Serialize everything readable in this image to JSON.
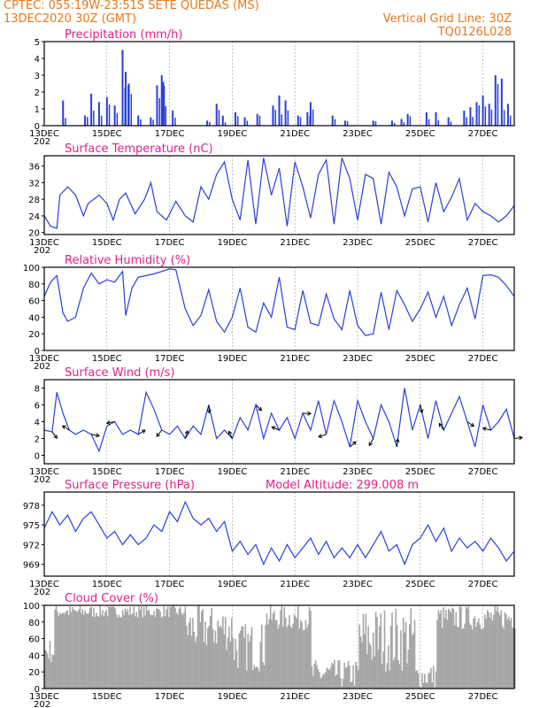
{
  "header": {
    "line1": "CPTEC:   055:19W-23:51S   SETE QUEDAS (MS)",
    "line2": "13DEC2020 30Z (GMT)",
    "grid_note": "Vertical Grid Line: 30Z",
    "run_id": "TQ0126L028"
  },
  "colors": {
    "series": "#2a3fd9",
    "cloud": "#a6a6a6",
    "title": "#e0208c",
    "header": "#e8781c"
  },
  "x_axis": {
    "labels": [
      "13DEC",
      "15DEC",
      "17DEC",
      "19DEC",
      "21DEC",
      "23DEC",
      "25DEC",
      "27DEC"
    ],
    "year_stub": "202",
    "start_day": 13,
    "end_day": 28
  },
  "panels": {
    "precip": {
      "title": "Precipitation (mm/h)",
      "y_ticks": [
        "0",
        "1",
        "2",
        "3",
        "4",
        "5"
      ],
      "ylim": [
        0,
        5
      ]
    },
    "temp": {
      "title": "Surface Temperature (nC)",
      "y_ticks": [
        "20",
        "24",
        "28",
        "32",
        "36"
      ],
      "ylim": [
        19.5,
        38.5
      ]
    },
    "humidity": {
      "title": "Relative Humidity (%)",
      "y_ticks": [
        "0",
        "20",
        "40",
        "60",
        "80",
        "100"
      ],
      "ylim": [
        0,
        100
      ]
    },
    "wind": {
      "title": "Surface Wind (m/s)",
      "y_ticks": [
        "0",
        "2",
        "4",
        "6",
        "8"
      ],
      "ylim": [
        -1,
        9
      ]
    },
    "pressure": {
      "title": "Surface Pressure (hPa)",
      "altitude": "Model Altitude: 299.008 m",
      "y_ticks": [
        "969",
        "972",
        "975",
        "978"
      ],
      "ylim": [
        967.2,
        980
      ]
    },
    "cloud": {
      "title": "Cloud Cover (%)",
      "y_ticks": [
        "0",
        "20",
        "40",
        "60",
        "80",
        "100"
      ],
      "ylim": [
        0,
        100
      ]
    }
  },
  "chart_data": [
    {
      "type": "bar",
      "title": "Precipitation (mm/h)",
      "ylabel": "mm/h",
      "ylim": [
        0,
        5
      ],
      "x": [
        13.6,
        14.3,
        14.5,
        14.75,
        15.0,
        15.25,
        15.5,
        15.6,
        15.7,
        16.0,
        16.4,
        16.6,
        16.75,
        16.8,
        17.1,
        18.2,
        18.5,
        18.7,
        19.1,
        19.4,
        19.8,
        20.3,
        20.5,
        20.7,
        21.1,
        21.4,
        21.5,
        22.2,
        22.6,
        23.5,
        24.1,
        24.4,
        24.6,
        25.2,
        25.5,
        25.9,
        26.4,
        26.6,
        26.8,
        27.0,
        27.2,
        27.4,
        27.6,
        27.8
      ],
      "values": [
        1.5,
        0.6,
        1.9,
        1.4,
        1.7,
        1.2,
        4.5,
        3.2,
        2.5,
        0.6,
        0.5,
        2.4,
        3.0,
        2.6,
        0.9,
        0.3,
        1.3,
        0.6,
        0.8,
        0.5,
        0.7,
        1.2,
        1.8,
        1.5,
        0.6,
        0.8,
        1.4,
        0.6,
        0.3,
        0.3,
        0.3,
        0.4,
        0.7,
        0.8,
        0.8,
        0.5,
        0.9,
        1.1,
        1.4,
        1.8,
        1.3,
        3.0,
        2.8,
        1.3
      ]
    },
    {
      "type": "line",
      "title": "Surface Temperature (nC)",
      "ylabel": "nC",
      "ylim": [
        19.5,
        38.5
      ],
      "x": [
        13.0,
        13.2,
        13.4,
        13.5,
        13.75,
        14.0,
        14.25,
        14.4,
        14.75,
        15.0,
        15.2,
        15.4,
        15.6,
        15.9,
        16.2,
        16.4,
        16.6,
        16.9,
        17.2,
        17.5,
        17.75,
        18.0,
        18.25,
        18.5,
        18.75,
        19.0,
        19.25,
        19.5,
        19.75,
        20.0,
        20.25,
        20.5,
        20.75,
        21.0,
        21.25,
        21.5,
        21.75,
        22.0,
        22.25,
        22.5,
        22.75,
        23.0,
        23.25,
        23.5,
        23.75,
        24.0,
        24.25,
        24.5,
        24.75,
        25.0,
        25.25,
        25.5,
        25.75,
        26.0,
        26.25,
        26.5,
        26.75,
        27.0,
        27.25,
        27.5,
        27.75,
        28.0
      ],
      "values": [
        24,
        21.5,
        21,
        29,
        31,
        29,
        24,
        27,
        29,
        27,
        23,
        28,
        29.5,
        24.5,
        28,
        32,
        25,
        23,
        27.5,
        24,
        22.5,
        31,
        28,
        34,
        37,
        28,
        23,
        37.5,
        22,
        38,
        29,
        35.5,
        21.5,
        37,
        31,
        23.5,
        34,
        37.5,
        22,
        38,
        33,
        23,
        34,
        33,
        22,
        34.5,
        31,
        24,
        30.5,
        31,
        22.5,
        32,
        25,
        28.5,
        33,
        23,
        27,
        25,
        24,
        22.5,
        24,
        26.5
      ]
    },
    {
      "type": "line",
      "title": "Relative Humidity (%)",
      "ylabel": "%",
      "ylim": [
        0,
        100
      ],
      "x": [
        13.0,
        13.2,
        13.4,
        13.6,
        13.75,
        14.0,
        14.25,
        14.5,
        14.75,
        15.0,
        15.25,
        15.5,
        15.6,
        15.8,
        16.0,
        16.5,
        17.0,
        17.2,
        17.5,
        17.75,
        18.0,
        18.25,
        18.5,
        18.75,
        19.0,
        19.25,
        19.5,
        19.75,
        20.0,
        20.25,
        20.5,
        20.75,
        21.0,
        21.25,
        21.5,
        21.75,
        22.0,
        22.25,
        22.5,
        22.75,
        23.0,
        23.25,
        23.5,
        23.75,
        24.0,
        24.25,
        24.5,
        24.75,
        25.0,
        25.25,
        25.5,
        25.75,
        26.0,
        26.25,
        26.5,
        26.75,
        27.0,
        27.25,
        27.5,
        27.75,
        28.0
      ],
      "values": [
        65,
        82,
        90,
        45,
        35,
        40,
        75,
        93,
        80,
        85,
        82,
        95,
        42,
        75,
        88,
        92,
        98,
        97,
        50,
        30,
        42,
        73,
        35,
        22,
        40,
        75,
        28,
        22,
        57,
        40,
        88,
        28,
        25,
        72,
        33,
        30,
        68,
        38,
        25,
        72,
        30,
        18,
        20,
        70,
        25,
        72,
        55,
        35,
        50,
        70,
        40,
        65,
        30,
        55,
        75,
        38,
        90,
        91,
        88,
        78,
        65
      ]
    },
    {
      "type": "line",
      "title": "Surface Wind (m/s)",
      "ylabel": "m/s",
      "ylim": [
        -1,
        9
      ],
      "x": [
        13.0,
        13.25,
        13.4,
        13.6,
        13.8,
        14.0,
        14.25,
        14.5,
        14.75,
        15.0,
        15.25,
        15.5,
        15.75,
        16.0,
        16.25,
        16.5,
        16.75,
        17.0,
        17.25,
        17.5,
        17.75,
        18.0,
        18.25,
        18.5,
        18.75,
        19.0,
        19.25,
        19.5,
        19.75,
        20.0,
        20.25,
        20.5,
        20.75,
        21.0,
        21.25,
        21.5,
        21.75,
        22.0,
        22.25,
        22.5,
        22.75,
        23.0,
        23.25,
        23.5,
        23.75,
        24.0,
        24.25,
        24.5,
        24.75,
        25.0,
        25.25,
        25.5,
        25.75,
        26.0,
        26.25,
        26.5,
        26.75,
        27.0,
        27.25,
        27.5,
        27.75,
        28.0
      ],
      "values": [
        3,
        2.8,
        7.5,
        5,
        3,
        2.5,
        3,
        2.5,
        0.5,
        3.5,
        4,
        2.5,
        3,
        2.5,
        7.5,
        5.5,
        3,
        2.5,
        3.5,
        2,
        3.5,
        2.5,
        6,
        2,
        3,
        2,
        4.5,
        3,
        6,
        2,
        5,
        3,
        4.5,
        2,
        5,
        3,
        6.5,
        2.5,
        6.5,
        4,
        1,
        6.5,
        4,
        2,
        6,
        4,
        1,
        8,
        3,
        6,
        2,
        6.5,
        3,
        5,
        7,
        4,
        1,
        6,
        3,
        4,
        5.5,
        2
      ]
    },
    {
      "type": "line",
      "title": "Surface Pressure (hPa)",
      "ylabel": "hPa",
      "ylim": [
        967.2,
        980
      ],
      "x": [
        13.0,
        13.25,
        13.5,
        13.75,
        14.0,
        14.25,
        14.5,
        14.75,
        15.0,
        15.25,
        15.5,
        15.75,
        16.0,
        16.25,
        16.5,
        16.75,
        17.0,
        17.25,
        17.5,
        17.75,
        18.0,
        18.25,
        18.5,
        18.75,
        19.0,
        19.25,
        19.5,
        19.75,
        20.0,
        20.25,
        20.5,
        20.75,
        21.0,
        21.25,
        21.5,
        21.75,
        22.0,
        22.25,
        22.5,
        22.75,
        23.0,
        23.25,
        23.5,
        23.75,
        24.0,
        24.25,
        24.5,
        24.75,
        25.0,
        25.25,
        25.5,
        25.75,
        26.0,
        26.25,
        26.5,
        26.75,
        27.0,
        27.25,
        27.5,
        27.75,
        28.0
      ],
      "values": [
        974.5,
        977,
        975,
        976.5,
        974,
        976,
        977,
        975,
        973,
        974,
        972,
        973.5,
        972,
        973,
        975,
        974,
        977,
        975.5,
        978.5,
        976,
        975,
        976,
        974,
        975.5,
        971,
        972.5,
        970.5,
        972,
        969,
        971.5,
        969.5,
        972,
        970,
        971.5,
        973,
        970.5,
        972.5,
        970,
        971.5,
        970,
        972,
        970,
        972,
        974,
        971,
        972,
        969,
        972,
        973,
        975,
        972.5,
        974.5,
        971,
        973,
        971.5,
        972.5,
        971,
        973,
        971.5,
        969.5,
        971
      ]
    }
  ]
}
